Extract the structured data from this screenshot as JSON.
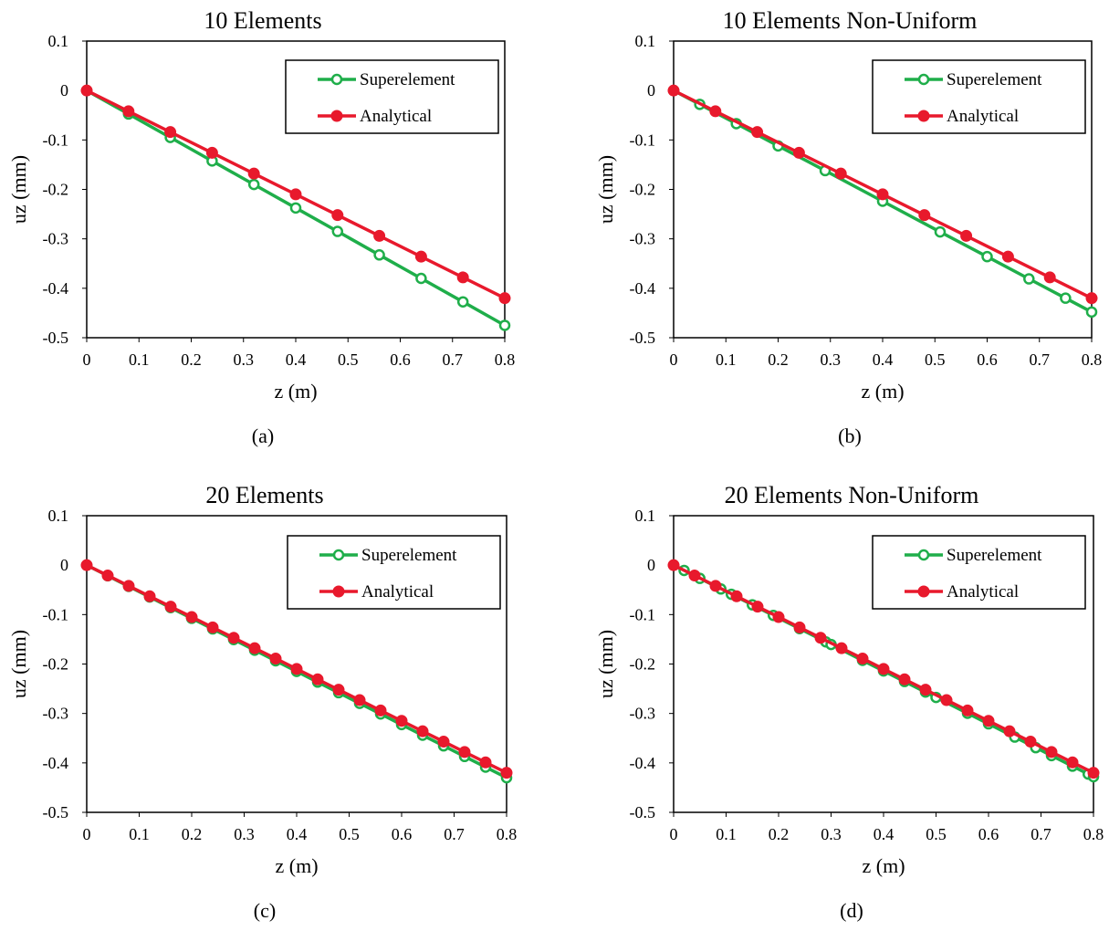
{
  "colors": {
    "superelement": "#1fae4a",
    "analytical": "#e8192c",
    "axis": "#000000"
  },
  "chart_data": [
    {
      "type": "line",
      "title": "10 Elements",
      "caption": "(a)",
      "xlabel": "z (m)",
      "ylabel": "uz (mm)",
      "xlim": [
        0,
        0.8
      ],
      "ylim": [
        -0.5,
        0.1
      ],
      "xticks": [
        0,
        0.1,
        0.2,
        0.3,
        0.4,
        0.5,
        0.6,
        0.7,
        0.8
      ],
      "xtick_labels": [
        "0",
        "0.1",
        "0.2",
        "0.3",
        "0.4",
        "0.5",
        "0.6",
        "0.7",
        "0.8"
      ],
      "yticks": [
        0.1,
        0,
        -0.1,
        -0.2,
        -0.3,
        -0.4,
        -0.5
      ],
      "ytick_labels": [
        "0.1",
        "0",
        "-0.1",
        "-0.2",
        "-0.3",
        "-0.4",
        "-0.5"
      ],
      "legend_position": "top-right",
      "series": [
        {
          "name": "Superelement",
          "marker": "open-circle",
          "x": [
            0,
            0.08,
            0.16,
            0.24,
            0.32,
            0.4,
            0.48,
            0.56,
            0.64,
            0.72,
            0.8
          ],
          "y": [
            0,
            -0.0475,
            -0.095,
            -0.1425,
            -0.19,
            -0.2375,
            -0.285,
            -0.3325,
            -0.38,
            -0.4275,
            -0.475
          ]
        },
        {
          "name": "Analytical",
          "marker": "filled-circle",
          "x": [
            0,
            0.08,
            0.16,
            0.24,
            0.32,
            0.4,
            0.48,
            0.56,
            0.64,
            0.72,
            0.8
          ],
          "y": [
            0,
            -0.042,
            -0.084,
            -0.126,
            -0.168,
            -0.21,
            -0.252,
            -0.294,
            -0.336,
            -0.378,
            -0.42
          ]
        }
      ]
    },
    {
      "type": "line",
      "title": "10 Elements Non-Uniform",
      "caption": "(b)",
      "xlabel": "z (m)",
      "ylabel": "uz (mm)",
      "xlim": [
        0,
        0.8
      ],
      "ylim": [
        -0.5,
        0.1
      ],
      "xticks": [
        0,
        0.1,
        0.2,
        0.3,
        0.4,
        0.5,
        0.6,
        0.7,
        0.8
      ],
      "xtick_labels": [
        "0",
        "0.1",
        "0.2",
        "0.3",
        "0.4",
        "0.5",
        "0.6",
        "0.7",
        "0.8"
      ],
      "yticks": [
        0.1,
        0,
        -0.1,
        -0.2,
        -0.3,
        -0.4,
        -0.5
      ],
      "ytick_labels": [
        "0.1",
        "0",
        "-0.1",
        "-0.2",
        "-0.3",
        "-0.4",
        "-0.5"
      ],
      "legend_position": "top-right",
      "series": [
        {
          "name": "Superelement",
          "marker": "open-circle",
          "x": [
            0,
            0.05,
            0.12,
            0.2,
            0.29,
            0.4,
            0.51,
            0.6,
            0.68,
            0.75,
            0.8
          ],
          "y": [
            0,
            -0.028,
            -0.067,
            -0.112,
            -0.162,
            -0.224,
            -0.286,
            -0.336,
            -0.381,
            -0.42,
            -0.448
          ]
        },
        {
          "name": "Analytical",
          "marker": "filled-circle",
          "x": [
            0,
            0.08,
            0.16,
            0.24,
            0.32,
            0.4,
            0.48,
            0.56,
            0.64,
            0.72,
            0.8
          ],
          "y": [
            0,
            -0.042,
            -0.084,
            -0.126,
            -0.168,
            -0.21,
            -0.252,
            -0.294,
            -0.336,
            -0.378,
            -0.42
          ]
        }
      ]
    },
    {
      "type": "line",
      "title": "20 Elements",
      "caption": "(c)",
      "xlabel": "z (m)",
      "ylabel": "uz (mm)",
      "xlim": [
        0,
        0.8
      ],
      "ylim": [
        -0.5,
        0.1
      ],
      "xticks": [
        0,
        0.1,
        0.2,
        0.3,
        0.4,
        0.5,
        0.6,
        0.7,
        0.8
      ],
      "xtick_labels": [
        "0",
        "0.1",
        "0.2",
        "0.3",
        "0.4",
        "0.5",
        "0.6",
        "0.7",
        "0.8"
      ],
      "yticks": [
        0.1,
        0,
        -0.1,
        -0.2,
        -0.3,
        -0.4,
        -0.5
      ],
      "ytick_labels": [
        "0.1",
        "0",
        "-0.1",
        "-0.2",
        "-0.3",
        "-0.4",
        "-0.5"
      ],
      "legend_position": "top-right",
      "series": [
        {
          "name": "Superelement",
          "marker": "open-circle",
          "x": [
            0,
            0.04,
            0.08,
            0.12,
            0.16,
            0.2,
            0.24,
            0.28,
            0.32,
            0.36,
            0.4,
            0.44,
            0.48,
            0.52,
            0.56,
            0.6,
            0.64,
            0.68,
            0.72,
            0.76,
            0.8
          ],
          "y": [
            0,
            -0.0215,
            -0.043,
            -0.0645,
            -0.086,
            -0.1075,
            -0.129,
            -0.1505,
            -0.172,
            -0.1935,
            -0.215,
            -0.2365,
            -0.258,
            -0.2795,
            -0.301,
            -0.3225,
            -0.344,
            -0.3655,
            -0.387,
            -0.4085,
            -0.43
          ]
        },
        {
          "name": "Analytical",
          "marker": "filled-circle",
          "x": [
            0,
            0.04,
            0.08,
            0.12,
            0.16,
            0.2,
            0.24,
            0.28,
            0.32,
            0.36,
            0.4,
            0.44,
            0.48,
            0.52,
            0.56,
            0.6,
            0.64,
            0.68,
            0.72,
            0.76,
            0.8
          ],
          "y": [
            0,
            -0.021,
            -0.042,
            -0.063,
            -0.084,
            -0.105,
            -0.126,
            -0.147,
            -0.168,
            -0.189,
            -0.21,
            -0.231,
            -0.252,
            -0.273,
            -0.294,
            -0.315,
            -0.336,
            -0.357,
            -0.378,
            -0.399,
            -0.42
          ]
        }
      ]
    },
    {
      "type": "line",
      "title": "20 Elements Non-Uniform",
      "caption": "(d)",
      "xlabel": "z (m)",
      "ylabel": "uz (mm)",
      "xlim": [
        0,
        0.8
      ],
      "ylim": [
        -0.5,
        0.1
      ],
      "xticks": [
        0,
        0.1,
        0.2,
        0.3,
        0.4,
        0.5,
        0.6,
        0.7,
        0.8
      ],
      "xtick_labels": [
        "0",
        "0.1",
        "0.2",
        "0.3",
        "0.4",
        "0.5",
        "0.6",
        "0.7",
        "0.8"
      ],
      "yticks": [
        0.1,
        0,
        -0.1,
        -0.2,
        -0.3,
        -0.4,
        -0.5
      ],
      "ytick_labels": [
        "0.1",
        "0",
        "-0.1",
        "-0.2",
        "-0.3",
        "-0.4",
        "-0.5"
      ],
      "legend_position": "top-right",
      "series": [
        {
          "name": "Superelement",
          "marker": "open-circle",
          "x": [
            0,
            0.02,
            0.05,
            0.09,
            0.11,
            0.15,
            0.19,
            0.24,
            0.29,
            0.3,
            0.36,
            0.4,
            0.44,
            0.48,
            0.5,
            0.56,
            0.6,
            0.65,
            0.69,
            0.72,
            0.76,
            0.79,
            0.8
          ],
          "y": [
            0,
            -0.0107,
            -0.0268,
            -0.0482,
            -0.0589,
            -0.0803,
            -0.1017,
            -0.1284,
            -0.1552,
            -0.1605,
            -0.1926,
            -0.214,
            -0.2354,
            -0.2568,
            -0.2675,
            -0.2996,
            -0.321,
            -0.3478,
            -0.3692,
            -0.3852,
            -0.4066,
            -0.4227,
            -0.428
          ]
        },
        {
          "name": "Analytical",
          "marker": "filled-circle",
          "x": [
            0,
            0.04,
            0.08,
            0.12,
            0.16,
            0.2,
            0.24,
            0.28,
            0.32,
            0.36,
            0.4,
            0.44,
            0.48,
            0.52,
            0.56,
            0.6,
            0.64,
            0.68,
            0.72,
            0.76,
            0.8
          ],
          "y": [
            0,
            -0.021,
            -0.042,
            -0.063,
            -0.084,
            -0.105,
            -0.126,
            -0.147,
            -0.168,
            -0.189,
            -0.21,
            -0.231,
            -0.252,
            -0.273,
            -0.294,
            -0.315,
            -0.336,
            -0.357,
            -0.378,
            -0.399,
            -0.42
          ]
        }
      ]
    }
  ]
}
